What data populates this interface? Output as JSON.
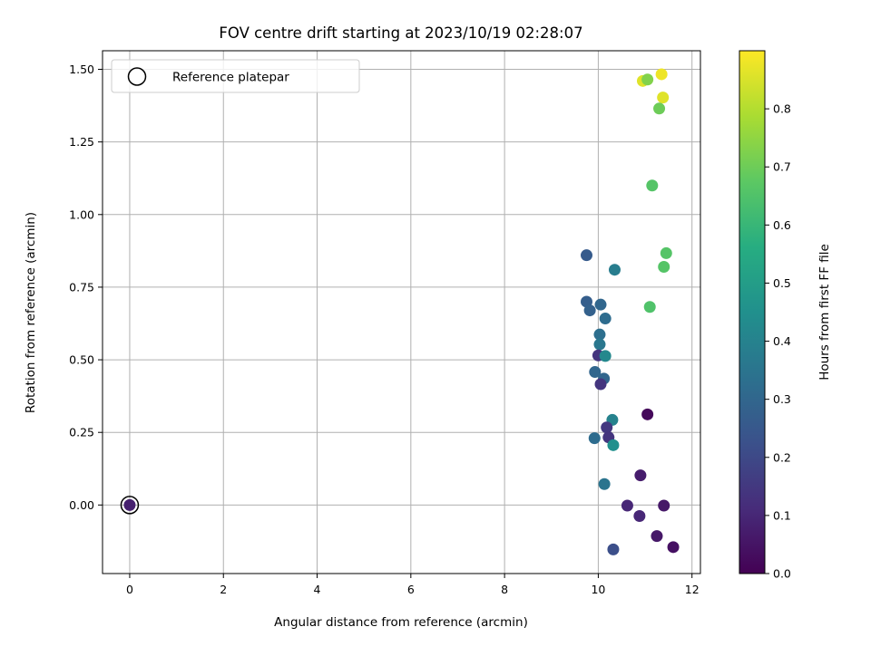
{
  "chart_data": {
    "type": "scatter",
    "title": "FOV centre drift starting at 2023/10/19 02:28:07",
    "xlabel": "Angular distance from reference (arcmin)",
    "ylabel": "Rotation from reference (arcmin)",
    "xlim": [
      -0.58,
      12.18
    ],
    "ylim": [
      -0.236,
      1.564
    ],
    "xticks": [
      0,
      2,
      4,
      6,
      8,
      10,
      12
    ],
    "xtick_labels": [
      "0",
      "2",
      "4",
      "6",
      "8",
      "10",
      "12"
    ],
    "yticks": [
      0.0,
      0.25,
      0.5,
      0.75,
      1.0,
      1.25,
      1.5
    ],
    "ytick_labels": [
      "0.00",
      "0.25",
      "0.50",
      "0.75",
      "1.00",
      "1.25",
      "1.50"
    ],
    "grid": true,
    "colormap": "viridis",
    "colorbar": {
      "label": "Hours from first FF file",
      "range": [
        0.0,
        0.9
      ],
      "ticks": [
        0.0,
        0.1,
        0.2,
        0.3,
        0.4,
        0.5,
        0.6,
        0.7,
        0.8
      ],
      "tick_labels": [
        "0.0",
        "0.1",
        "0.2",
        "0.3",
        "0.4",
        "0.5",
        "0.6",
        "0.7",
        "0.8"
      ]
    },
    "legend": {
      "entry": "Reference platepar",
      "location": "upper-left"
    },
    "reference_point": {
      "x": 0.0,
      "y": 0.0,
      "marker": "open-circle"
    },
    "points": [
      {
        "x": 0.0,
        "y": 0.0,
        "c": 0.08
      },
      {
        "x": 10.95,
        "y": 1.46,
        "c": 0.86
      },
      {
        "x": 11.05,
        "y": 1.465,
        "c": 0.73
      },
      {
        "x": 11.35,
        "y": 1.483,
        "c": 0.88
      },
      {
        "x": 11.38,
        "y": 1.403,
        "c": 0.86
      },
      {
        "x": 11.3,
        "y": 1.365,
        "c": 0.7
      },
      {
        "x": 11.15,
        "y": 1.1,
        "c": 0.66
      },
      {
        "x": 11.45,
        "y": 0.867,
        "c": 0.66
      },
      {
        "x": 11.4,
        "y": 0.82,
        "c": 0.66
      },
      {
        "x": 11.1,
        "y": 0.682,
        "c": 0.65
      },
      {
        "x": 9.75,
        "y": 0.86,
        "c": 0.26
      },
      {
        "x": 10.35,
        "y": 0.81,
        "c": 0.38
      },
      {
        "x": 9.75,
        "y": 0.7,
        "c": 0.27
      },
      {
        "x": 9.82,
        "y": 0.67,
        "c": 0.28
      },
      {
        "x": 10.05,
        "y": 0.69,
        "c": 0.3
      },
      {
        "x": 10.15,
        "y": 0.642,
        "c": 0.32
      },
      {
        "x": 10.03,
        "y": 0.587,
        "c": 0.33
      },
      {
        "x": 10.03,
        "y": 0.553,
        "c": 0.36
      },
      {
        "x": 10.0,
        "y": 0.515,
        "c": 0.14
      },
      {
        "x": 10.15,
        "y": 0.513,
        "c": 0.42
      },
      {
        "x": 9.93,
        "y": 0.458,
        "c": 0.3
      },
      {
        "x": 10.12,
        "y": 0.435,
        "c": 0.3
      },
      {
        "x": 10.05,
        "y": 0.416,
        "c": 0.14
      },
      {
        "x": 10.3,
        "y": 0.293,
        "c": 0.4
      },
      {
        "x": 10.18,
        "y": 0.267,
        "c": 0.15
      },
      {
        "x": 11.05,
        "y": 0.312,
        "c": 0.02
      },
      {
        "x": 10.22,
        "y": 0.233,
        "c": 0.14
      },
      {
        "x": 9.92,
        "y": 0.23,
        "c": 0.32
      },
      {
        "x": 10.32,
        "y": 0.206,
        "c": 0.45
      },
      {
        "x": 10.9,
        "y": 0.102,
        "c": 0.07
      },
      {
        "x": 10.13,
        "y": 0.072,
        "c": 0.35
      },
      {
        "x": 10.62,
        "y": -0.002,
        "c": 0.1
      },
      {
        "x": 11.4,
        "y": -0.002,
        "c": 0.06
      },
      {
        "x": 10.88,
        "y": -0.038,
        "c": 0.1
      },
      {
        "x": 11.25,
        "y": -0.107,
        "c": 0.06
      },
      {
        "x": 11.6,
        "y": -0.145,
        "c": 0.04
      },
      {
        "x": 10.32,
        "y": -0.153,
        "c": 0.22
      }
    ]
  }
}
